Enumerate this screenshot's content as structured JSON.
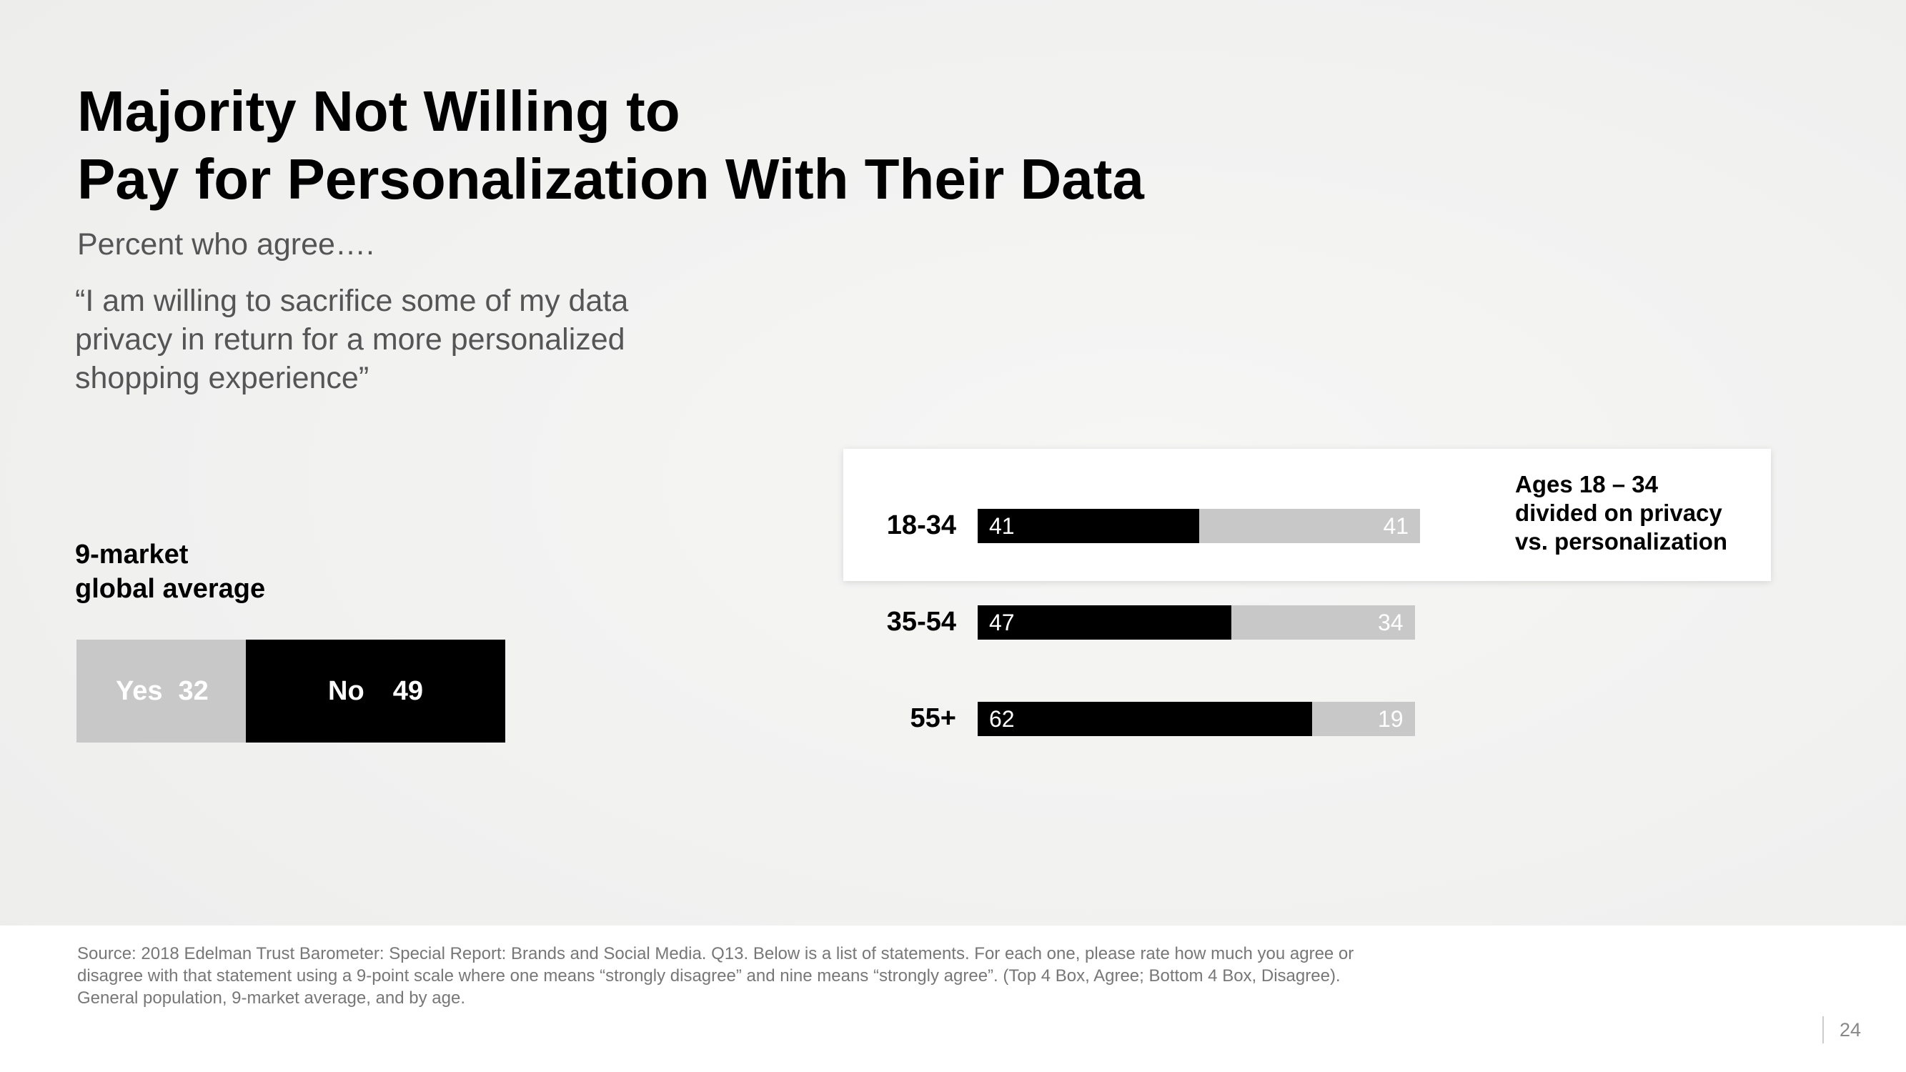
{
  "slide": {
    "title_lines": [
      "Majority Not Willing to",
      "Pay for Personalization With Their Data"
    ],
    "subtitle": "Percent who agree….",
    "quote_lines": [
      "“I am willing to sacrifice some of my data",
      "privacy in return for a more personalized",
      "shopping experience”"
    ],
    "global_label_lines": [
      "9-market",
      "global average"
    ],
    "callout_lines": [
      "Ages 18 – 34",
      "divided on privacy",
      "vs. personalization"
    ],
    "source_lines": [
      "Source: 2018 Edelman Trust Barometer: Special Report: Brands and Social Media. Q13. Below is a list of statements. For each one, please rate how much you agree or",
      "disagree with that statement using a 9-point scale where one means “strongly disagree” and nine means “strongly agree”. (Top 4 Box, Agree; Bottom 4 Box, Disagree).",
      "General population, 9-market average, and by age."
    ],
    "page_number": "24"
  },
  "colors": {
    "no": "#000000",
    "yes": "#c8c8c8",
    "highlight_bg": "#ffffff"
  },
  "chart_data": [
    {
      "type": "bar",
      "orientation": "horizontal-stacked",
      "categories": [
        "9-market global average"
      ],
      "series": [
        {
          "name": "Yes",
          "values": [
            32
          ],
          "color": "#c8c8c8"
        },
        {
          "name": "No",
          "values": [
            49
          ],
          "color": "#000000"
        }
      ]
    },
    {
      "type": "bar",
      "orientation": "horizontal-stacked",
      "categories": [
        "18-34",
        "35-54",
        "55+"
      ],
      "series": [
        {
          "values": [
            41,
            47,
            62
          ],
          "color": "#000000"
        },
        {
          "values": [
            41,
            34,
            19
          ],
          "color": "#c8c8c8"
        }
      ],
      "highlighted_category": "18-34"
    }
  ]
}
